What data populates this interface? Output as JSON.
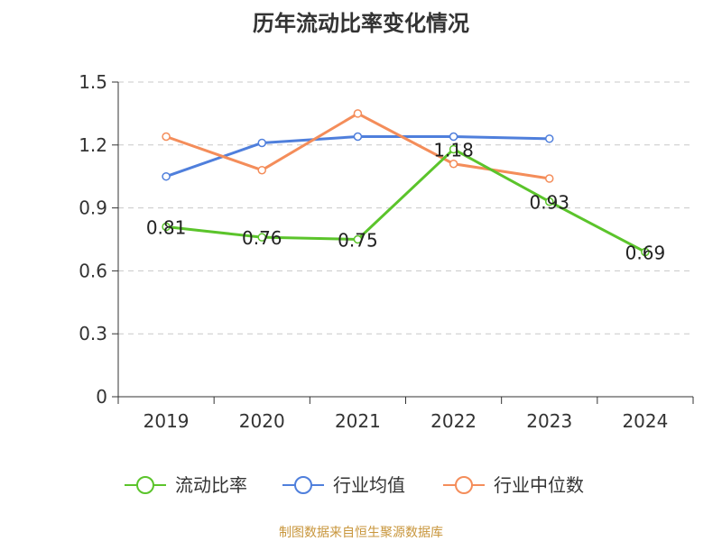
{
  "chart_data": {
    "type": "line",
    "title": "历年流动比率变化情况",
    "x": [
      "2019",
      "2020",
      "2021",
      "2022",
      "2023",
      "2024"
    ],
    "ylim": [
      0,
      1.5
    ],
    "yticks": [
      "0",
      "0.3",
      "0.6",
      "0.9",
      "1.2",
      "1.5"
    ],
    "ytick_values": [
      0,
      0.3,
      0.6,
      0.9,
      1.2,
      1.5
    ],
    "grid": true,
    "legend_position": "bottom",
    "series": [
      {
        "name": "流动比率",
        "color": "#5bc42b",
        "values": [
          0.81,
          0.76,
          0.75,
          1.18,
          0.93,
          0.69
        ],
        "labels": [
          "0.81",
          "0.76",
          "0.75",
          "1.18",
          "0.93",
          "0.69"
        ]
      },
      {
        "name": "行业均值",
        "color": "#4f7fdc",
        "values": [
          1.05,
          1.21,
          1.24,
          1.24,
          1.23,
          null
        ]
      },
      {
        "name": "行业中位数",
        "color": "#f48d5a",
        "values": [
          1.24,
          1.08,
          1.35,
          1.11,
          1.04,
          null
        ]
      }
    ]
  },
  "source_note": "制图数据来自恒生聚源数据库"
}
